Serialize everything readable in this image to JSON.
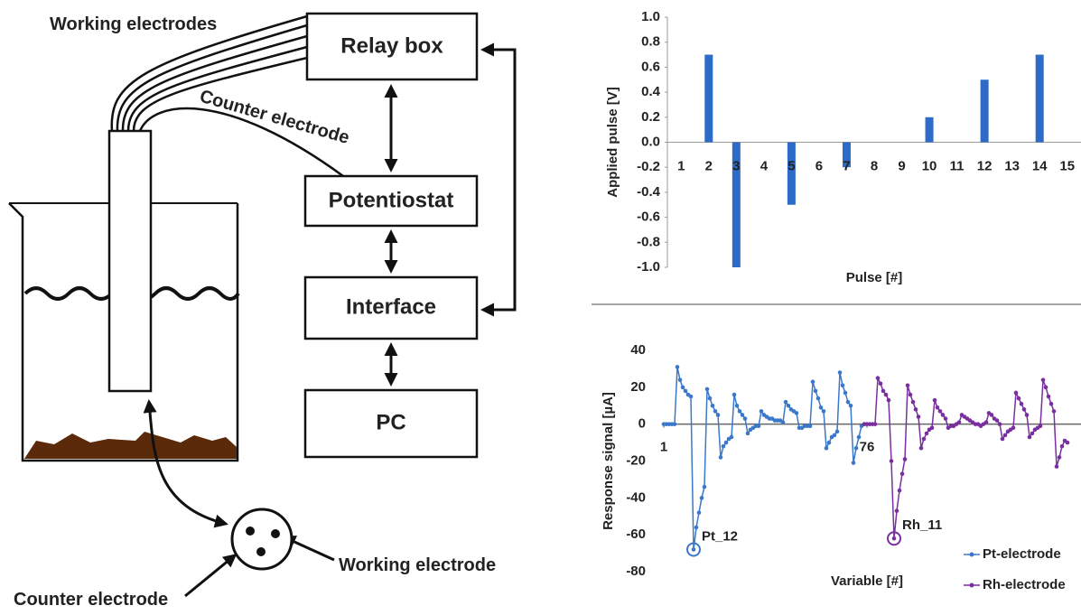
{
  "diagram": {
    "boxes": [
      "Relay box",
      "Potentiostat",
      "Interface",
      "PC"
    ],
    "labels": {
      "working_electrodes": "Working electrodes",
      "counter_cable": "Counter electrode",
      "working_electrode": "Working electrode",
      "counter_electrode": "Counter electrode"
    }
  },
  "chart_data": [
    {
      "type": "bar",
      "y_label": "Applied pulse [V]",
      "x_label": "Pulse [#]",
      "categories": [
        "1",
        "2",
        "3",
        "4",
        "5",
        "6",
        "7",
        "8",
        "9",
        "10",
        "11",
        "12",
        "13",
        "14",
        "15"
      ],
      "values": [
        0,
        0.7,
        -1.0,
        0,
        -0.5,
        0,
        -0.2,
        0,
        0,
        0.2,
        0,
        0.5,
        0,
        0.7,
        0
      ],
      "color": "#2e6bc6",
      "ylim": [
        -1,
        1
      ],
      "yticks": [
        {
          "value": 1,
          "label": "1.0"
        },
        0.8,
        0.6,
        0.4,
        0.2,
        {
          "value": 0,
          "label": "0.0"
        },
        -0.2,
        -0.4,
        -0.6,
        -0.8,
        {
          "value": -1,
          "label": "-1.0"
        }
      ]
    },
    {
      "type": "line",
      "y_label": "Response signal [µA]",
      "x_label": "Variable [#]",
      "x": [
        1,
        2,
        3,
        4,
        5,
        6,
        7,
        8,
        9,
        10,
        11,
        12,
        13,
        14,
        15,
        16,
        17,
        18,
        19,
        20,
        21,
        22,
        23,
        24,
        25,
        26,
        27,
        28,
        29,
        30,
        31,
        32,
        33,
        34,
        35,
        36,
        37,
        38,
        39,
        40,
        41,
        42,
        43,
        44,
        45,
        46,
        47,
        48,
        49,
        50,
        51,
        52,
        53,
        54,
        55,
        56,
        57,
        58,
        59,
        60,
        61,
        62,
        63,
        64,
        65,
        66,
        67,
        68,
        69,
        70,
        71,
        72,
        73,
        74,
        75,
        76,
        77,
        78,
        79,
        80,
        81,
        82,
        83,
        84,
        85,
        86,
        87,
        88,
        89,
        90,
        91,
        92,
        93,
        94,
        95,
        96,
        97,
        98,
        99,
        100,
        101,
        102,
        103,
        104,
        105,
        106,
        107,
        108,
        109,
        110,
        111,
        112,
        113,
        114,
        115,
        116,
        117,
        118,
        119,
        120,
        121,
        122,
        123,
        124,
        125,
        126,
        127,
        128,
        129,
        130,
        131,
        132,
        133,
        134,
        135,
        136,
        137,
        138,
        139,
        140,
        141,
        142,
        143,
        144,
        145,
        146,
        147,
        148,
        149,
        150
      ],
      "xlim": [
        1,
        155
      ],
      "xticks": [
        1,
        76
      ],
      "ylim": [
        -80,
        40
      ],
      "yticks": [
        40,
        20,
        0,
        -20,
        -40,
        -60,
        -80
      ],
      "legend": "bottom-right",
      "annotations": [
        "Pt_12",
        "Rh_11"
      ],
      "series": [
        {
          "name": "Pt-electrode",
          "color": "#3a78c9",
          "values": [
            0,
            0,
            0,
            0,
            0,
            31,
            24,
            20,
            18,
            16,
            15,
            -68,
            -56,
            -48,
            -40,
            -34,
            19,
            14,
            10,
            7,
            5,
            -18,
            -12,
            -10,
            -8,
            -7,
            16,
            10,
            7,
            5,
            3,
            -5,
            -3,
            -2,
            -1,
            -1,
            7,
            5,
            4,
            3,
            3,
            2,
            2,
            2,
            1,
            12,
            10,
            8,
            7,
            6,
            -2,
            -2,
            -1,
            -1,
            -1,
            23,
            18,
            14,
            9,
            7,
            -13,
            -10,
            -7,
            -6,
            -4,
            28,
            21,
            17,
            12,
            10,
            -21,
            -13,
            -7,
            -1,
            0,
            null,
            null,
            null,
            null,
            null,
            null,
            null,
            null,
            null,
            null,
            null,
            null,
            null,
            null,
            null,
            null,
            null,
            null,
            null,
            null,
            null,
            null,
            null,
            null,
            null,
            null,
            null,
            null,
            null,
            null,
            null,
            null,
            null,
            null,
            null,
            null,
            null,
            null,
            null,
            null,
            null,
            null,
            null,
            null,
            null,
            null,
            null,
            null,
            null,
            null,
            null,
            null,
            null,
            null,
            null,
            null,
            null,
            null,
            null,
            null,
            null,
            null,
            null,
            null,
            null,
            null,
            null,
            null,
            null,
            null,
            null,
            null,
            null,
            null,
            null
          ]
        },
        {
          "name": "Rh-electrode",
          "color": "#7a2fa0",
          "values": [
            null,
            null,
            null,
            null,
            null,
            null,
            null,
            null,
            null,
            null,
            null,
            null,
            null,
            null,
            null,
            null,
            null,
            null,
            null,
            null,
            null,
            null,
            null,
            null,
            null,
            null,
            null,
            null,
            null,
            null,
            null,
            null,
            null,
            null,
            null,
            null,
            null,
            null,
            null,
            null,
            null,
            null,
            null,
            null,
            null,
            null,
            null,
            null,
            null,
            null,
            null,
            null,
            null,
            null,
            null,
            null,
            null,
            null,
            null,
            null,
            null,
            null,
            null,
            null,
            null,
            null,
            null,
            null,
            null,
            null,
            null,
            null,
            null,
            null,
            0,
            0,
            0,
            0,
            0,
            25,
            22,
            18,
            16,
            13,
            -20,
            -62,
            -47,
            -36,
            -27,
            -19,
            21,
            16,
            12,
            8,
            4,
            -13,
            -8,
            -5,
            -3,
            -2,
            13,
            9,
            7,
            5,
            3,
            -2,
            -1,
            -1,
            0,
            1,
            5,
            4,
            3,
            2,
            1,
            0,
            0,
            -1,
            0,
            1,
            6,
            5,
            3,
            2,
            0,
            -8,
            -6,
            -4,
            -3,
            -2,
            17,
            14,
            11,
            8,
            5,
            -7,
            -5,
            -3,
            -2,
            -1,
            24,
            20,
            15,
            11,
            7,
            -23,
            -18,
            -12,
            -9,
            -10
          ]
        }
      ]
    }
  ]
}
